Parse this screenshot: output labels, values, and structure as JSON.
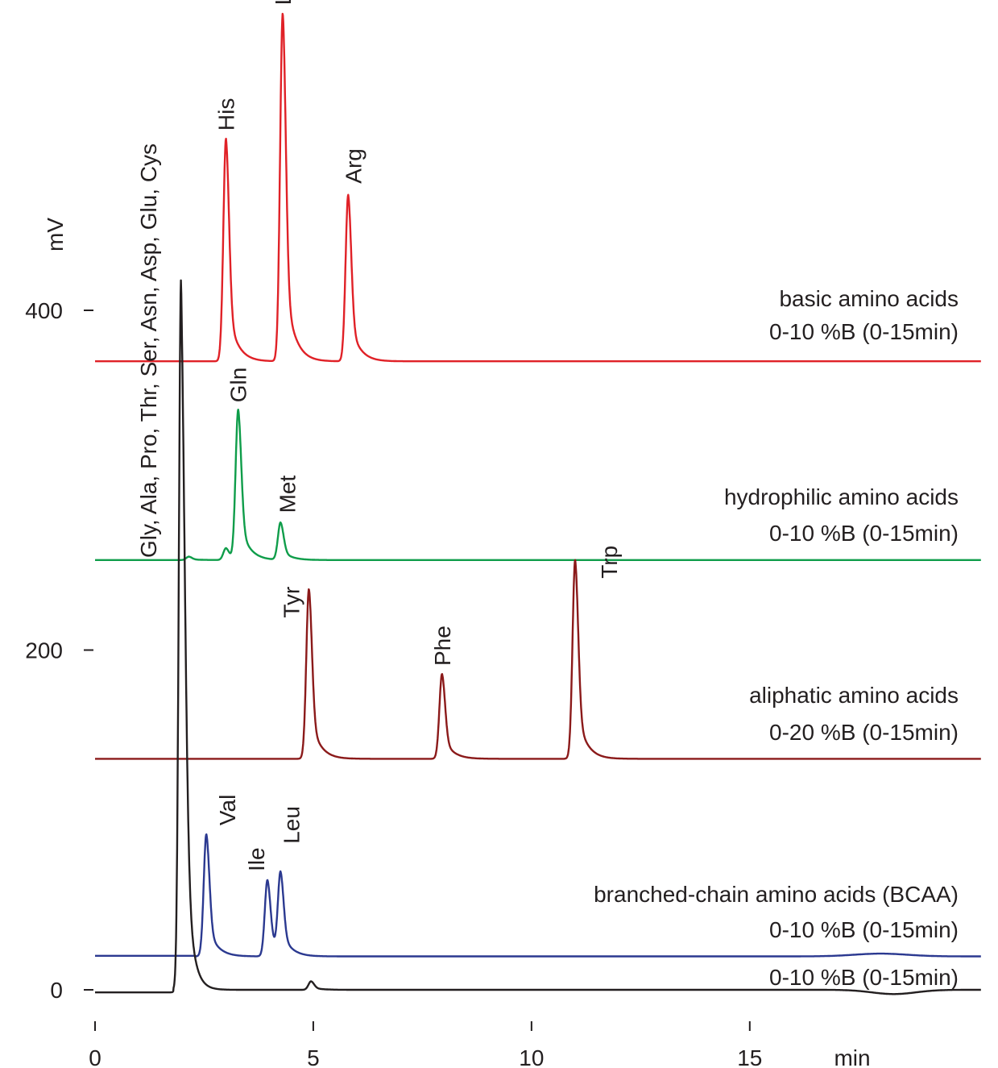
{
  "chart_data": {
    "type": "line",
    "xlabel": "min",
    "ylabel": "mV",
    "xlim": [
      0,
      20.3
    ],
    "ylim": [
      0,
      400
    ],
    "x_ticks": [
      0,
      5,
      10,
      15
    ],
    "y_ticks": [
      0,
      200,
      400
    ],
    "x_tick_labels": [
      "0",
      "5",
      "10",
      "15"
    ],
    "y_tick_labels": [
      "0",
      "200",
      "400"
    ],
    "grid": false,
    "series": [
      {
        "key": "basic",
        "color": "#e02127",
        "baseline": 370,
        "label_lines": [
          "basic amino acids",
          "0-10 %B (0-15min)"
        ],
        "peaks": [
          {
            "name": "His",
            "t": 3.0,
            "height": 131
          },
          {
            "name": "Lys",
            "t": 4.3,
            "height": 205
          },
          {
            "name": "Arg",
            "t": 5.8,
            "height": 98
          }
        ]
      },
      {
        "key": "hydrophilic",
        "color": "#0f9d4a",
        "baseline": 253,
        "label_lines": [
          "hydrophilic amino acids",
          "0-10 %B (0-15min)"
        ],
        "peaks": [
          {
            "name": "",
            "t": 2.15,
            "height": 2
          },
          {
            "name": "",
            "t": 3.0,
            "height": 7
          },
          {
            "name": "Gln",
            "t": 3.28,
            "height": 88
          },
          {
            "name": "Met",
            "t": 4.25,
            "height": 22
          }
        ]
      },
      {
        "key": "aliphatic",
        "color": "#8b1a1a",
        "baseline": 136,
        "label_lines": [
          "aliphatic amino acids",
          "0-20 %B (0-15min)"
        ],
        "peaks": [
          {
            "name": "Tyr",
            "t": 4.9,
            "height": 100
          },
          {
            "name": "Phe",
            "t": 7.95,
            "height": 50
          },
          {
            "name": "Trp",
            "t": 11.0,
            "height": 117
          }
        ]
      },
      {
        "key": "bcaa",
        "color": "#2b3990",
        "baseline": 20,
        "label_lines": [
          "branched-chain amino acids (BCAA)",
          "0-10 %B (0-15min)"
        ],
        "peaks": [
          {
            "name": "Val",
            "t": 2.55,
            "height": 72
          },
          {
            "name": "Ile",
            "t": 3.95,
            "height": 45
          },
          {
            "name": "Leu",
            "t": 4.25,
            "height": 47
          }
        ]
      },
      {
        "key": "mix",
        "color": "#231f20",
        "baseline": 0,
        "label_lines": [
          "0-10 %B (0-15min)"
        ],
        "peaks": [
          {
            "name": "Gly, Ala, Pro, Thr, Ser, Asn, Asp, Glu, Cys",
            "t": 1.97,
            "height": 418
          },
          {
            "name": "",
            "t": 4.95,
            "height": 5
          }
        ]
      }
    ]
  }
}
